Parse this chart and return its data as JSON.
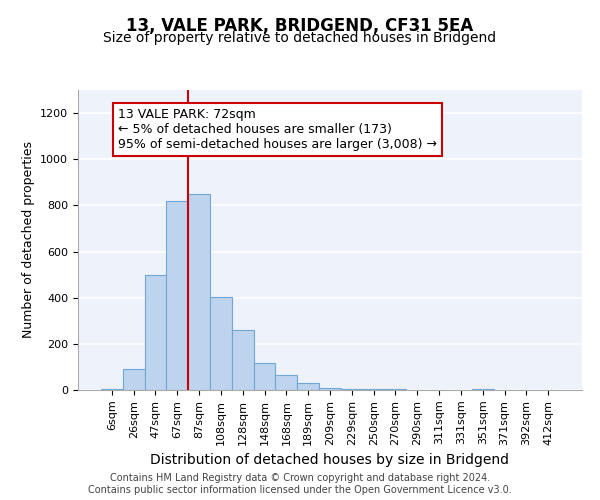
{
  "title1": "13, VALE PARK, BRIDGEND, CF31 5EA",
  "title2": "Size of property relative to detached houses in Bridgend",
  "xlabel": "Distribution of detached houses by size in Bridgend",
  "ylabel": "Number of detached properties",
  "footnote": "Contains HM Land Registry data © Crown copyright and database right 2024.\nContains public sector information licensed under the Open Government Licence v3.0.",
  "bar_labels": [
    "6sqm",
    "26sqm",
    "47sqm",
    "67sqm",
    "87sqm",
    "108sqm",
    "128sqm",
    "148sqm",
    "168sqm",
    "189sqm",
    "209sqm",
    "229sqm",
    "250sqm",
    "270sqm",
    "290sqm",
    "311sqm",
    "331sqm",
    "351sqm",
    "371sqm",
    "392sqm",
    "412sqm"
  ],
  "bar_values": [
    5,
    90,
    500,
    820,
    850,
    405,
    260,
    115,
    65,
    30,
    10,
    5,
    5,
    5,
    0,
    0,
    0,
    5,
    0,
    0,
    0
  ],
  "bar_color": "#bed3ed",
  "bar_edgecolor": "#6fa8d6",
  "red_line_x": 3.5,
  "ylim": [
    0,
    1300
  ],
  "yticks": [
    0,
    200,
    400,
    600,
    800,
    1000,
    1200
  ],
  "annotation_text": "13 VALE PARK: 72sqm\n← 5% of detached houses are smaller (173)\n95% of semi-detached houses are larger (3,008) →",
  "annotation_box_edgecolor": "#cc0000",
  "vline_color": "#cc0000",
  "background_color": "#eef2fb",
  "title1_fontsize": 12,
  "title2_fontsize": 10,
  "xlabel_fontsize": 10,
  "ylabel_fontsize": 9,
  "annotation_fontsize": 9,
  "tick_fontsize": 8,
  "footnote_fontsize": 7
}
